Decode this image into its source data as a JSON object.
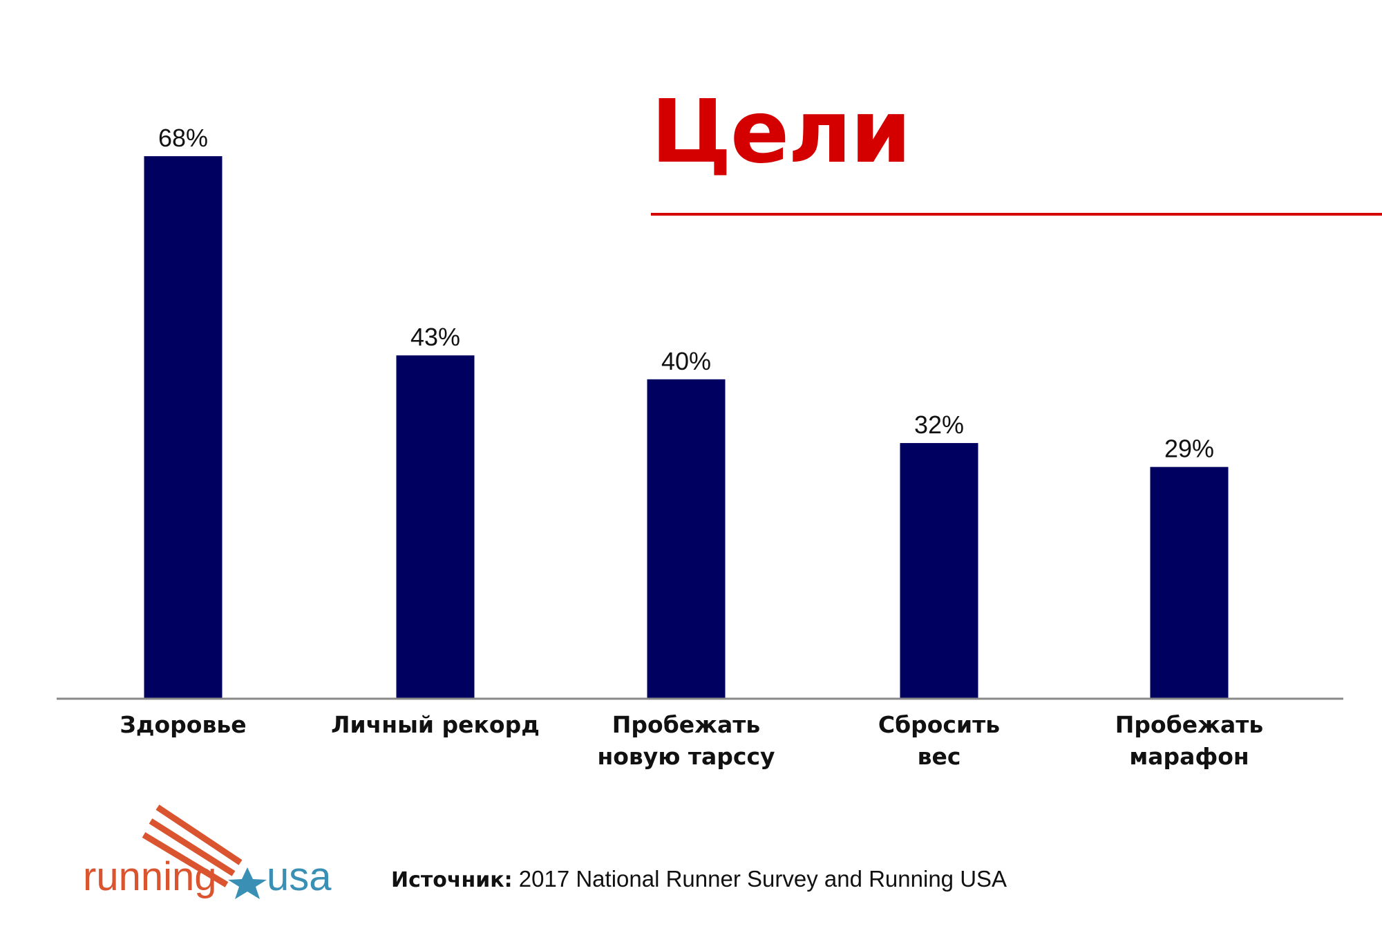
{
  "title": "Цели",
  "source": {
    "label": "Источник:",
    "text": "2017 National Runner Survey and Running USA"
  },
  "logo": {
    "left_word": "running",
    "right_word": "usa",
    "colors": {
      "running": "#d9542f",
      "usa": "#3a8fb5",
      "stripes": "#d9542f",
      "star": "#3a8fb5"
    }
  },
  "colors": {
    "bar": "#000060",
    "title": "#d40000",
    "axis": "#888888",
    "text": "#111111"
  },
  "chart_data": {
    "type": "bar",
    "categories": [
      [
        "Здоровье"
      ],
      [
        "Личный рекорд"
      ],
      [
        "Пробежать",
        "новую тарссу"
      ],
      [
        "Сбросить",
        "вес"
      ],
      [
        "Пробежать",
        "марафон"
      ]
    ],
    "values": [
      68,
      43,
      40,
      32,
      29
    ],
    "value_labels": [
      "68%",
      "43%",
      "40%",
      "32%",
      "29%"
    ],
    "unit": "%",
    "ylim": [
      0,
      68
    ],
    "grid": false,
    "legend": "none"
  }
}
